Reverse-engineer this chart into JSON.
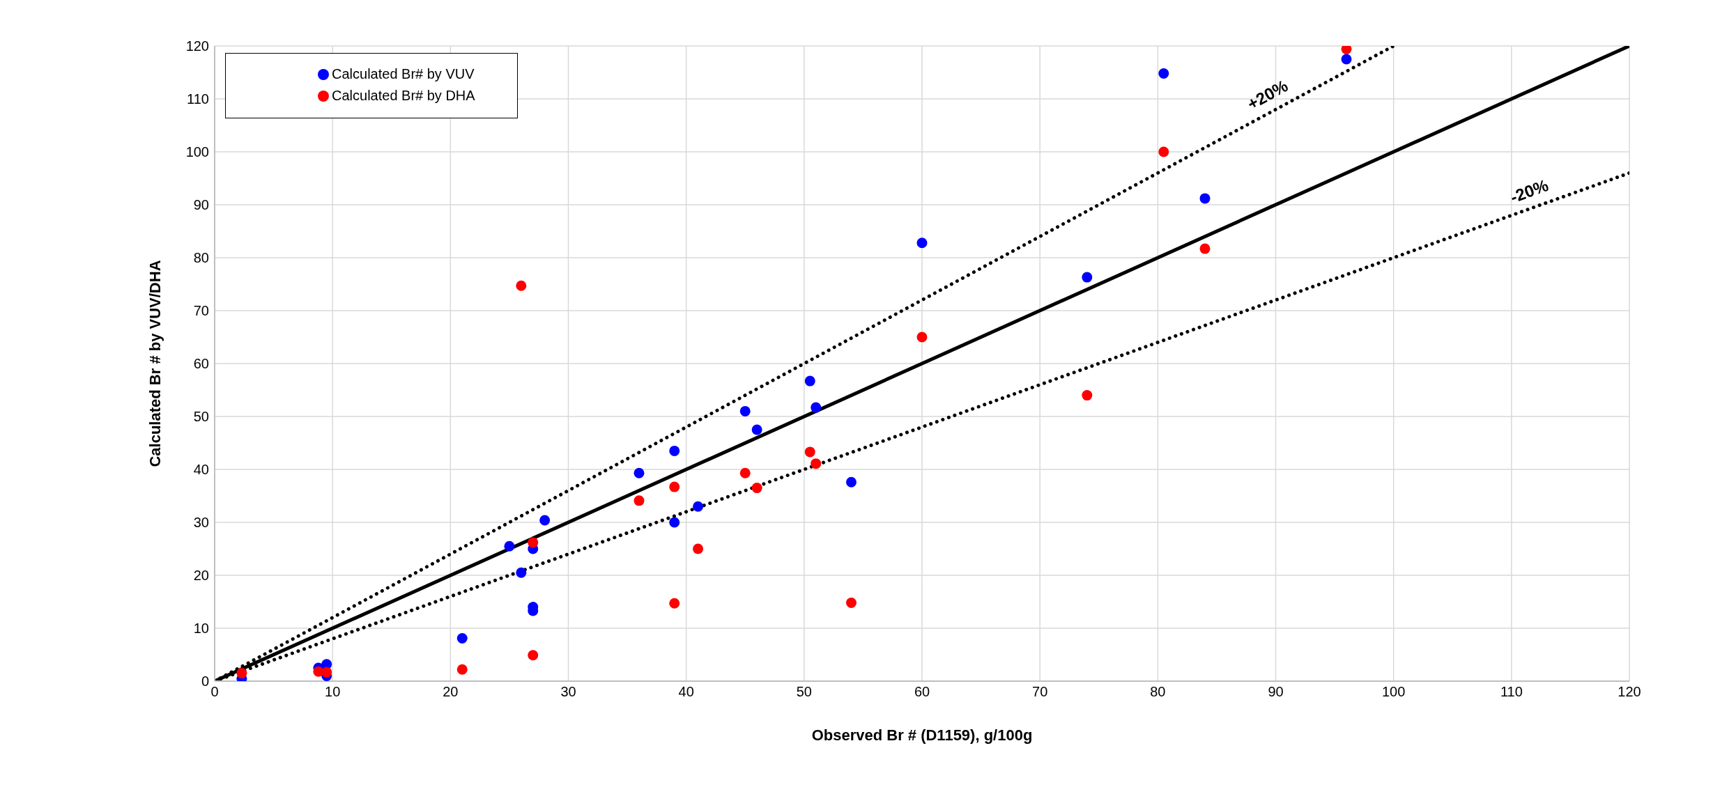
{
  "chart_data": {
    "type": "scatter",
    "xlabel": "Observed Br # (D1159), g/100g",
    "ylabel": "Calculated Br # by VUV/DHA",
    "xlim": [
      0,
      120
    ],
    "xticks": [
      0,
      10,
      20,
      30,
      40,
      50,
      60,
      70,
      80,
      90,
      100,
      110,
      120
    ],
    "ylim": [
      0,
      120
    ],
    "yticks": [
      0,
      10,
      20,
      30,
      40,
      50,
      60,
      70,
      80,
      90,
      100,
      110,
      120
    ],
    "grid": true,
    "legend": "top left",
    "marker": "circle",
    "series": [
      {
        "name": "Calculated Br# by VUV",
        "color": "#0000ff",
        "x": [
          2.3,
          8.8,
          9.5,
          9.5,
          21,
          25,
          26,
          27,
          27,
          27,
          28,
          36,
          39,
          39,
          41,
          45,
          46,
          50.5,
          51,
          54,
          60,
          74,
          80.5,
          84,
          96
        ],
        "values": [
          0.5,
          2.5,
          3.2,
          1.0,
          8.1,
          25.5,
          20.5,
          25.0,
          14.0,
          13.3,
          30.4,
          39.3,
          43.5,
          30.0,
          33.0,
          51.0,
          47.5,
          56.7,
          51.7,
          37.6,
          82.8,
          76.3,
          114.8,
          91.2,
          117.5
        ]
      },
      {
        "name": "Calculated Br# by DHA",
        "color": "#ff0000",
        "x": [
          2.3,
          8.8,
          9.5,
          21,
          26,
          27,
          27,
          36,
          39,
          39,
          41,
          45,
          46,
          50.5,
          51,
          54,
          60,
          74,
          80.5,
          84,
          96
        ],
        "values": [
          1.5,
          1.8,
          1.7,
          2.2,
          74.7,
          26.2,
          4.9,
          34.1,
          36.7,
          14.7,
          25.0,
          39.3,
          36.5,
          43.3,
          41.1,
          14.8,
          65.0,
          54.0,
          100.0,
          81.7,
          119.4
        ]
      },
      {
        "type": "line",
        "color": "#000000",
        "line_style": "solid",
        "marker": "none",
        "x": [
          0,
          120
        ],
        "values": [
          0,
          120
        ]
      },
      {
        "type": "line",
        "color": "#000000",
        "line_style": "dotted",
        "marker": "none",
        "x": [
          0,
          100
        ],
        "values": [
          0,
          120
        ]
      },
      {
        "type": "line",
        "color": "#000000",
        "line_style": "dotted",
        "marker": "none",
        "x": [
          0,
          120
        ],
        "values": [
          0,
          96
        ]
      }
    ],
    "annotations": [
      {
        "text": "+20%",
        "x": 90,
        "y": 108
      },
      {
        "text": "-20%",
        "x": 112,
        "y": 89.6
      }
    ]
  }
}
